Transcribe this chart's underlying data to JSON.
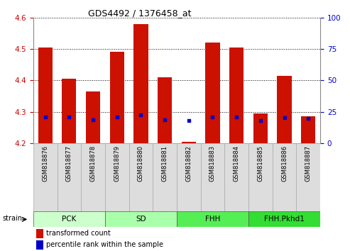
{
  "title": "GDS4492 / 1376458_at",
  "samples": [
    "GSM818876",
    "GSM818877",
    "GSM818878",
    "GSM818879",
    "GSM818880",
    "GSM818881",
    "GSM818882",
    "GSM818883",
    "GSM818884",
    "GSM818885",
    "GSM818886",
    "GSM818887"
  ],
  "transformed_count": [
    4.505,
    4.405,
    4.365,
    4.49,
    4.58,
    4.41,
    4.205,
    4.52,
    4.505,
    4.295,
    4.415,
    4.285
  ],
  "percentile": [
    4.282,
    4.282,
    4.275,
    4.284,
    4.29,
    4.275,
    4.272,
    4.284,
    4.284,
    4.272,
    4.28,
    4.278
  ],
  "ylim_left": [
    4.2,
    4.6
  ],
  "ylim_right": [
    0,
    100
  ],
  "yticks_left": [
    4.2,
    4.3,
    4.4,
    4.5,
    4.6
  ],
  "yticks_right": [
    0,
    25,
    50,
    75,
    100
  ],
  "bar_color": "#cc1100",
  "pct_color": "#0000cc",
  "bar_bottom": 4.2,
  "groups": [
    {
      "label": "PCK",
      "start": 0,
      "end": 3,
      "color": "#ccffcc"
    },
    {
      "label": "SD",
      "start": 3,
      "end": 6,
      "color": "#aaffaa"
    },
    {
      "label": "FHH",
      "start": 6,
      "end": 9,
      "color": "#55ee55"
    },
    {
      "label": "FHH.Pkhd1",
      "start": 9,
      "end": 12,
      "color": "#33dd33"
    }
  ],
  "strain_label": "strain",
  "legend_red": "transformed count",
  "legend_blue": "percentile rank within the sample",
  "tick_label_color_left": "#cc0000",
  "tick_label_color_right": "#0000cc",
  "title_color": "#000000",
  "sample_box_color": "#dddddd",
  "sample_box_edge": "#aaaaaa"
}
